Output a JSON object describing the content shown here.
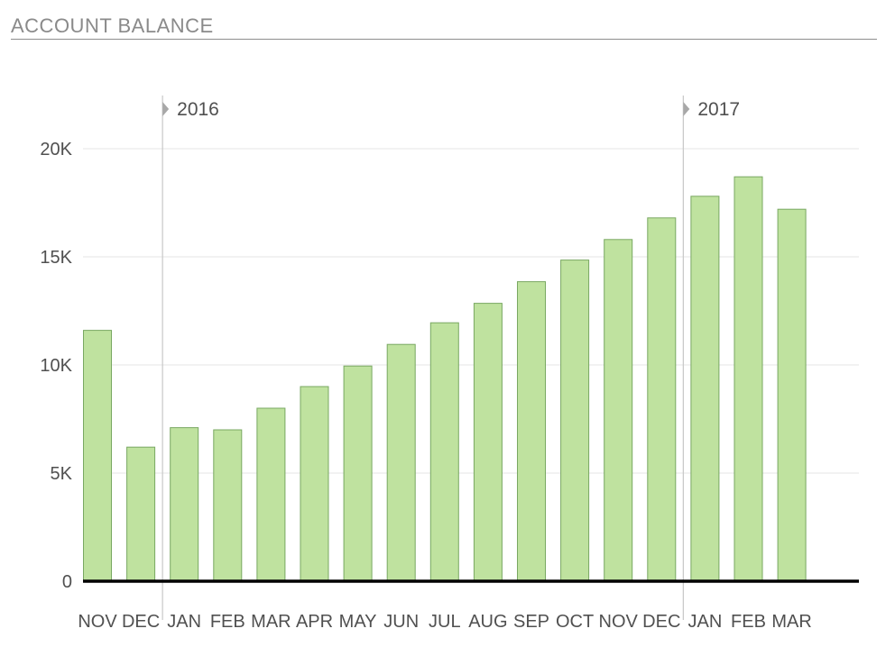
{
  "header": {
    "title": "ACCOUNT BALANCE"
  },
  "chart_data": {
    "type": "bar",
    "title": "ACCOUNT BALANCE",
    "xlabel": "",
    "ylabel": "",
    "categories": [
      "NOV",
      "DEC",
      "JAN",
      "FEB",
      "MAR",
      "APR",
      "MAY",
      "JUN",
      "JUL",
      "AUG",
      "SEP",
      "OCT",
      "NOV",
      "DEC",
      "JAN",
      "FEB",
      "MAR"
    ],
    "values": [
      11600,
      6200,
      7100,
      7000,
      8000,
      9000,
      9950,
      10950,
      11950,
      12850,
      13850,
      14850,
      15800,
      16800,
      17800,
      18700,
      17200
    ],
    "ylim": [
      0,
      20000
    ],
    "y_ticks": [
      0,
      5000,
      10000,
      15000,
      20000
    ],
    "y_tick_labels": [
      "0",
      "5K",
      "10K",
      "15K",
      "20K"
    ],
    "year_markers": [
      {
        "label": "2016",
        "before_index": 2
      },
      {
        "label": "2017",
        "before_index": 14
      }
    ],
    "grid": true,
    "colors": {
      "bar_fill": "#bfe29f",
      "bar_stroke": "#79a862",
      "grid": "#e4e4e4",
      "baseline": "#000000",
      "year_line": "#c8c8c8"
    }
  }
}
